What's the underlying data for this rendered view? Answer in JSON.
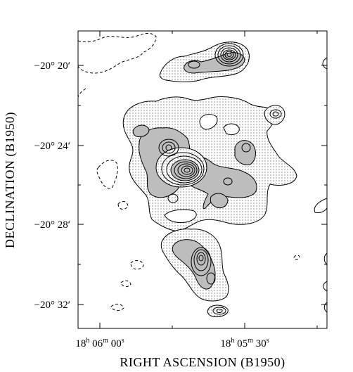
{
  "axes": {
    "xlabel": "RIGHT ASCENSION (B1950)",
    "ylabel": "DECLINATION (B1950)",
    "x_ticks": [
      {
        "h": "18",
        "m": "06",
        "s": "00"
      },
      {
        "h": "18",
        "m": "05",
        "s": "30"
      }
    ],
    "y_ticks": [
      "−20° 20′",
      "−20° 24′",
      "−20° 28′",
      "−20° 32′"
    ]
  },
  "units": {
    "h": "h",
    "m": "m",
    "s": "s"
  },
  "colors": {
    "background": "#ffffff",
    "stipple": "#000000",
    "gray_fill": "#bdbdbd",
    "contour": "#000000"
  }
}
